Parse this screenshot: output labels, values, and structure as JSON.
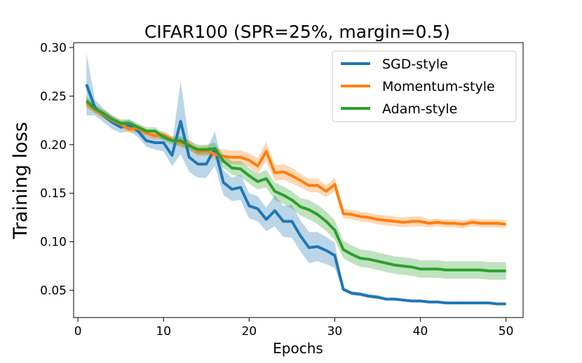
{
  "chart_data": {
    "type": "line",
    "title": "CIFAR100 (SPR=25%, margin=0.5)",
    "xlabel": "Epochs",
    "ylabel": "Training loss",
    "xlim": [
      -0.5,
      52
    ],
    "ylim": [
      0.022,
      0.305
    ],
    "xticks": [
      0,
      10,
      20,
      30,
      40,
      50
    ],
    "xtick_labels": [
      "0",
      "10",
      "20",
      "30",
      "40",
      "50"
    ],
    "yticks": [
      0.05,
      0.1,
      0.15,
      0.2,
      0.25,
      0.3
    ],
    "ytick_labels": [
      "0.05",
      "0.10",
      "0.15",
      "0.20",
      "0.25",
      "0.30"
    ],
    "grid": false,
    "legend_position": "top-right",
    "x": [
      1,
      2,
      3,
      4,
      5,
      6,
      7,
      8,
      9,
      10,
      11,
      12,
      13,
      14,
      15,
      16,
      17,
      18,
      19,
      20,
      21,
      22,
      23,
      24,
      25,
      26,
      27,
      28,
      29,
      30,
      31,
      32,
      33,
      34,
      35,
      36,
      37,
      38,
      39,
      40,
      41,
      42,
      43,
      44,
      45,
      46,
      47,
      48,
      49,
      50
    ],
    "series": [
      {
        "name": "SGD-style",
        "color": "#1f77b4",
        "values": [
          0.262,
          0.238,
          0.23,
          0.223,
          0.218,
          0.22,
          0.214,
          0.204,
          0.202,
          0.202,
          0.189,
          0.224,
          0.187,
          0.18,
          0.18,
          0.196,
          0.161,
          0.154,
          0.156,
          0.137,
          0.134,
          0.123,
          0.132,
          0.121,
          0.121,
          0.106,
          0.094,
          0.095,
          0.091,
          0.086,
          0.051,
          0.047,
          0.046,
          0.044,
          0.043,
          0.041,
          0.041,
          0.04,
          0.039,
          0.039,
          0.038,
          0.038,
          0.037,
          0.037,
          0.037,
          0.037,
          0.037,
          0.037,
          0.036,
          0.036
        ],
        "lower": [
          0.23,
          0.23,
          0.223,
          0.216,
          0.212,
          0.214,
          0.208,
          0.198,
          0.195,
          0.193,
          0.178,
          0.19,
          0.172,
          0.166,
          0.166,
          0.178,
          0.148,
          0.142,
          0.143,
          0.124,
          0.121,
          0.111,
          0.116,
          0.105,
          0.104,
          0.09,
          0.078,
          0.08,
          0.077,
          0.073,
          0.049,
          0.045,
          0.044,
          0.042,
          0.041,
          0.04,
          0.04,
          0.039,
          0.038,
          0.038,
          0.037,
          0.037,
          0.036,
          0.036,
          0.036,
          0.036,
          0.036,
          0.036,
          0.035,
          0.035
        ],
        "upper": [
          0.294,
          0.246,
          0.237,
          0.23,
          0.224,
          0.226,
          0.22,
          0.21,
          0.209,
          0.211,
          0.2,
          0.266,
          0.202,
          0.194,
          0.194,
          0.214,
          0.174,
          0.166,
          0.169,
          0.15,
          0.147,
          0.135,
          0.148,
          0.137,
          0.138,
          0.122,
          0.11,
          0.11,
          0.105,
          0.099,
          0.053,
          0.049,
          0.048,
          0.046,
          0.045,
          0.042,
          0.042,
          0.041,
          0.04,
          0.04,
          0.039,
          0.039,
          0.038,
          0.038,
          0.038,
          0.038,
          0.038,
          0.038,
          0.037,
          0.037
        ]
      },
      {
        "name": "Momentum-style",
        "color": "#ff7f0e",
        "values": [
          0.243,
          0.236,
          0.231,
          0.225,
          0.221,
          0.216,
          0.217,
          0.212,
          0.209,
          0.21,
          0.205,
          0.202,
          0.2,
          0.193,
          0.194,
          0.19,
          0.188,
          0.187,
          0.187,
          0.184,
          0.178,
          0.193,
          0.171,
          0.172,
          0.168,
          0.163,
          0.158,
          0.158,
          0.152,
          0.159,
          0.129,
          0.128,
          0.126,
          0.125,
          0.123,
          0.122,
          0.121,
          0.12,
          0.121,
          0.121,
          0.119,
          0.12,
          0.119,
          0.119,
          0.118,
          0.12,
          0.119,
          0.119,
          0.119,
          0.118
        ],
        "lower": [
          0.238,
          0.232,
          0.227,
          0.221,
          0.217,
          0.212,
          0.213,
          0.208,
          0.205,
          0.206,
          0.201,
          0.197,
          0.195,
          0.188,
          0.189,
          0.184,
          0.181,
          0.18,
          0.18,
          0.177,
          0.17,
          0.183,
          0.163,
          0.164,
          0.16,
          0.156,
          0.151,
          0.151,
          0.146,
          0.152,
          0.124,
          0.123,
          0.121,
          0.12,
          0.118,
          0.117,
          0.116,
          0.115,
          0.116,
          0.116,
          0.115,
          0.116,
          0.115,
          0.115,
          0.114,
          0.116,
          0.115,
          0.115,
          0.115,
          0.114
        ],
        "upper": [
          0.248,
          0.24,
          0.235,
          0.229,
          0.225,
          0.22,
          0.221,
          0.216,
          0.213,
          0.214,
          0.209,
          0.207,
          0.205,
          0.198,
          0.199,
          0.196,
          0.195,
          0.194,
          0.194,
          0.191,
          0.186,
          0.203,
          0.179,
          0.18,
          0.176,
          0.17,
          0.165,
          0.165,
          0.158,
          0.166,
          0.134,
          0.133,
          0.131,
          0.13,
          0.128,
          0.127,
          0.126,
          0.125,
          0.126,
          0.126,
          0.123,
          0.124,
          0.123,
          0.123,
          0.122,
          0.124,
          0.123,
          0.123,
          0.123,
          0.122
        ]
      },
      {
        "name": "Adam-style",
        "color": "#2ca02c",
        "values": [
          0.245,
          0.237,
          0.232,
          0.226,
          0.222,
          0.222,
          0.218,
          0.214,
          0.214,
          0.208,
          0.204,
          0.204,
          0.199,
          0.195,
          0.195,
          0.196,
          0.183,
          0.176,
          0.175,
          0.168,
          0.162,
          0.165,
          0.152,
          0.148,
          0.143,
          0.136,
          0.133,
          0.128,
          0.121,
          0.112,
          0.092,
          0.087,
          0.083,
          0.082,
          0.08,
          0.078,
          0.076,
          0.075,
          0.074,
          0.072,
          0.072,
          0.072,
          0.071,
          0.071,
          0.071,
          0.071,
          0.071,
          0.07,
          0.07,
          0.07
        ],
        "lower": [
          0.24,
          0.233,
          0.228,
          0.222,
          0.218,
          0.218,
          0.214,
          0.21,
          0.21,
          0.204,
          0.2,
          0.199,
          0.194,
          0.19,
          0.19,
          0.19,
          0.176,
          0.169,
          0.167,
          0.16,
          0.154,
          0.156,
          0.143,
          0.139,
          0.134,
          0.127,
          0.123,
          0.118,
          0.111,
          0.102,
          0.083,
          0.078,
          0.074,
          0.073,
          0.071,
          0.069,
          0.067,
          0.066,
          0.065,
          0.063,
          0.063,
          0.063,
          0.062,
          0.062,
          0.062,
          0.062,
          0.062,
          0.061,
          0.061,
          0.061
        ],
        "upper": [
          0.25,
          0.241,
          0.236,
          0.23,
          0.226,
          0.226,
          0.222,
          0.218,
          0.218,
          0.212,
          0.208,
          0.209,
          0.204,
          0.2,
          0.2,
          0.202,
          0.19,
          0.183,
          0.183,
          0.176,
          0.17,
          0.174,
          0.161,
          0.157,
          0.152,
          0.145,
          0.143,
          0.138,
          0.131,
          0.122,
          0.101,
          0.096,
          0.092,
          0.091,
          0.089,
          0.087,
          0.085,
          0.084,
          0.083,
          0.081,
          0.081,
          0.081,
          0.08,
          0.08,
          0.08,
          0.08,
          0.08,
          0.079,
          0.079,
          0.079
        ]
      }
    ]
  }
}
